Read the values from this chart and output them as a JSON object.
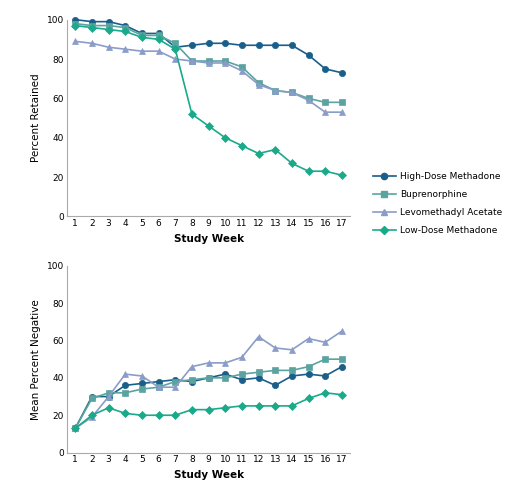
{
  "weeks": [
    1,
    2,
    3,
    4,
    5,
    6,
    7,
    8,
    9,
    10,
    11,
    12,
    13,
    14,
    15,
    16,
    17
  ],
  "retention": {
    "high_dose_methadone": [
      100,
      99,
      99,
      97,
      93,
      93,
      86,
      87,
      88,
      88,
      87,
      87,
      87,
      87,
      82,
      75,
      73
    ],
    "buprenorphine": [
      98,
      97,
      97,
      96,
      92,
      92,
      88,
      79,
      79,
      79,
      76,
      68,
      64,
      63,
      60,
      58,
      58
    ],
    "levomethadyl_acetate": [
      89,
      88,
      86,
      85,
      84,
      84,
      80,
      79,
      78,
      78,
      74,
      67,
      64,
      63,
      59,
      53,
      53
    ],
    "low_dose_methadone": [
      97,
      96,
      95,
      94,
      91,
      90,
      85,
      52,
      46,
      40,
      36,
      32,
      34,
      27,
      23,
      23,
      21
    ]
  },
  "toxicology": {
    "high_dose_methadone": [
      13,
      30,
      30,
      36,
      37,
      38,
      39,
      38,
      40,
      42,
      39,
      40,
      36,
      41,
      42,
      41,
      46
    ],
    "buprenorphine": [
      13,
      29,
      32,
      32,
      34,
      35,
      38,
      39,
      40,
      40,
      42,
      43,
      44,
      44,
      46,
      50,
      50
    ],
    "levomethadyl_acetate": [
      13,
      19,
      30,
      42,
      41,
      35,
      35,
      46,
      48,
      48,
      51,
      62,
      56,
      55,
      61,
      59,
      65
    ],
    "low_dose_methadone": [
      13,
      20,
      24,
      21,
      20,
      20,
      20,
      23,
      23,
      24,
      25,
      25,
      25,
      25,
      29,
      32,
      31
    ]
  },
  "colors": {
    "high_dose_methadone": "#1a5e8a",
    "buprenorphine": "#5ba3a0",
    "levomethadyl_acetate": "#8a9cc8",
    "low_dose_methadone": "#1aaa8a"
  },
  "markers": {
    "high_dose_methadone": "o",
    "buprenorphine": "s",
    "levomethadyl_acetate": "^",
    "low_dose_methadone": "D"
  },
  "labels": {
    "high_dose_methadone": "High-Dose Methadone",
    "buprenorphine": "Buprenorphine",
    "levomethadyl_acetate": "Levomethadyl Acetate",
    "low_dose_methadone": "Low-Dose Methadone"
  },
  "ylabel_top": "Percent Retained",
  "ylabel_bottom": "Mean Percent Negative",
  "xlabel": "Study Week",
  "ylim": [
    0,
    100
  ],
  "yticks": [
    0,
    20,
    40,
    60,
    80,
    100
  ],
  "background_color": "#ffffff",
  "linewidth": 1.2,
  "markersize": 4.5
}
